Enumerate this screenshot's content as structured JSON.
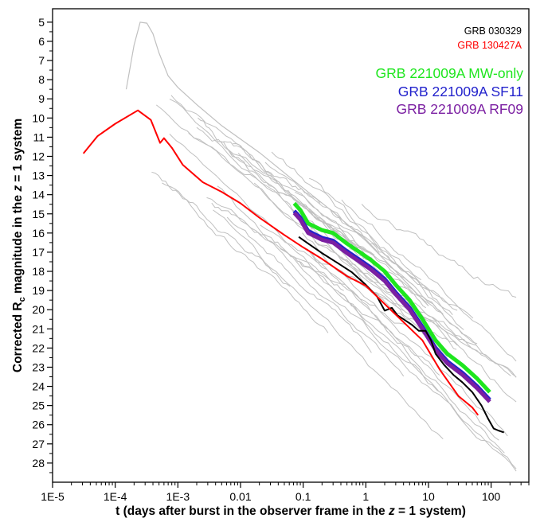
{
  "chart_data": {
    "type": "line",
    "title": "",
    "xlabel": "t (days after burst in the observer frame in the z = 1 system)",
    "xlabel_parts": {
      "pre": "t (days after burst in the observer frame in the ",
      "italic": "z",
      "post": " = 1 system)"
    },
    "ylabel": "Corrected Rc magnitude in the z = 1 system",
    "ylabel_parts": {
      "pre": "Corrected R",
      "sub": "c",
      "mid": " magnitude in the ",
      "italic": "z",
      "post": " = 1 system"
    },
    "xscale": "log",
    "xlim": [
      1e-05,
      400
    ],
    "ylim": [
      29,
      4.3
    ],
    "y_inverted": true,
    "x_ticks": [
      {
        "value": 1e-05,
        "label": "1E-5"
      },
      {
        "value": 0.0001,
        "label": "1E-4"
      },
      {
        "value": 0.001,
        "label": "1E-3"
      },
      {
        "value": 0.01,
        "label": "0.01"
      },
      {
        "value": 0.1,
        "label": "0.1"
      },
      {
        "value": 1,
        "label": "1"
      },
      {
        "value": 10,
        "label": "10"
      },
      {
        "value": 100,
        "label": "100"
      }
    ],
    "y_ticks": [
      5,
      6,
      7,
      8,
      9,
      10,
      11,
      12,
      13,
      14,
      15,
      16,
      17,
      18,
      19,
      20,
      21,
      22,
      23,
      24,
      25,
      26,
      27,
      28
    ],
    "grid": false,
    "legend_position": "top-right",
    "background_color": "#c0c0c0",
    "series": [
      {
        "name": "GRB 030329",
        "color": "#000000",
        "points": [
          [
            0.085,
            16.2
          ],
          [
            0.12,
            16.55
          ],
          [
            0.2,
            17.05
          ],
          [
            0.35,
            17.55
          ],
          [
            0.6,
            18.05
          ],
          [
            1.0,
            18.7
          ],
          [
            1.5,
            19.3
          ],
          [
            2.0,
            20.05
          ],
          [
            2.6,
            19.9
          ],
          [
            3.2,
            20.3
          ],
          [
            4.0,
            20.5
          ],
          [
            5.5,
            20.8
          ],
          [
            7.0,
            21.1
          ],
          [
            9.0,
            21.1
          ],
          [
            11.0,
            21.6
          ],
          [
            13.0,
            22.3
          ],
          [
            18.0,
            22.9
          ],
          [
            25.0,
            23.4
          ],
          [
            35.0,
            23.8
          ],
          [
            50.0,
            24.3
          ],
          [
            70.0,
            25.0
          ],
          [
            90.0,
            25.7
          ],
          [
            110.0,
            26.2
          ],
          [
            130.0,
            26.3
          ],
          [
            160.0,
            26.4
          ]
        ]
      },
      {
        "name": "GRB 130427A",
        "color": "#ff0000",
        "points": [
          [
            3.1e-05,
            11.85
          ],
          [
            5.2e-05,
            10.95
          ],
          [
            0.0001,
            10.3
          ],
          [
            0.00023,
            9.6
          ],
          [
            0.00037,
            10.1
          ],
          [
            0.00052,
            11.3
          ],
          [
            0.0006,
            11.05
          ],
          [
            0.0008,
            11.55
          ],
          [
            0.0012,
            12.45
          ],
          [
            0.0025,
            13.35
          ],
          [
            0.005,
            13.85
          ],
          [
            0.01,
            14.45
          ],
          [
            0.02,
            15.2
          ],
          [
            0.05,
            16.1
          ],
          [
            0.1,
            16.75
          ],
          [
            0.2,
            17.35
          ],
          [
            0.5,
            18.25
          ],
          [
            1.0,
            18.75
          ],
          [
            2.0,
            19.7
          ],
          [
            4.0,
            20.65
          ],
          [
            8.0,
            21.6
          ],
          [
            15.0,
            23.1
          ],
          [
            30.0,
            24.5
          ],
          [
            50.0,
            25.1
          ],
          [
            62.0,
            25.5
          ]
        ]
      },
      {
        "name": "GRB 221009A MW-only",
        "color": "#1ee61e",
        "points": [
          [
            0.072,
            14.45
          ],
          [
            0.09,
            14.8
          ],
          [
            0.12,
            15.5
          ],
          [
            0.2,
            15.85
          ],
          [
            0.3,
            16.0
          ],
          [
            0.5,
            16.55
          ],
          [
            0.8,
            17.0
          ],
          [
            1.2,
            17.4
          ],
          [
            2.0,
            18.0
          ],
          [
            3.0,
            18.7
          ],
          [
            5.0,
            19.5
          ],
          [
            8.0,
            20.5
          ],
          [
            13.0,
            21.6
          ],
          [
            20.0,
            22.3
          ],
          [
            35.0,
            22.9
          ],
          [
            60.0,
            23.6
          ],
          [
            95.0,
            24.3
          ]
        ]
      },
      {
        "name": "GRB 221009A SF11",
        "color": "#2222cc",
        "points": [
          [
            0.072,
            14.85
          ],
          [
            0.09,
            15.2
          ],
          [
            0.12,
            15.9
          ],
          [
            0.2,
            16.25
          ],
          [
            0.3,
            16.4
          ],
          [
            0.5,
            16.95
          ],
          [
            0.8,
            17.4
          ],
          [
            1.2,
            17.8
          ],
          [
            2.0,
            18.4
          ],
          [
            3.0,
            19.1
          ],
          [
            5.0,
            19.9
          ],
          [
            8.0,
            20.9
          ],
          [
            13.0,
            22.0
          ],
          [
            20.0,
            22.7
          ],
          [
            35.0,
            23.3
          ],
          [
            60.0,
            24.0
          ],
          [
            95.0,
            24.7
          ]
        ]
      },
      {
        "name": "GRB 221009A RF09",
        "color": "#7b1fa2",
        "points": [
          [
            0.072,
            14.95
          ],
          [
            0.09,
            15.3
          ],
          [
            0.12,
            16.0
          ],
          [
            0.2,
            16.35
          ],
          [
            0.3,
            16.5
          ],
          [
            0.5,
            17.05
          ],
          [
            0.8,
            17.5
          ],
          [
            1.2,
            17.9
          ],
          [
            2.0,
            18.5
          ],
          [
            3.0,
            19.2
          ],
          [
            5.0,
            20.0
          ],
          [
            8.0,
            21.0
          ],
          [
            13.0,
            22.1
          ],
          [
            20.0,
            22.8
          ],
          [
            35.0,
            23.4
          ],
          [
            60.0,
            24.1
          ],
          [
            95.0,
            24.8
          ]
        ]
      }
    ],
    "background_curves_note_count": 40
  }
}
